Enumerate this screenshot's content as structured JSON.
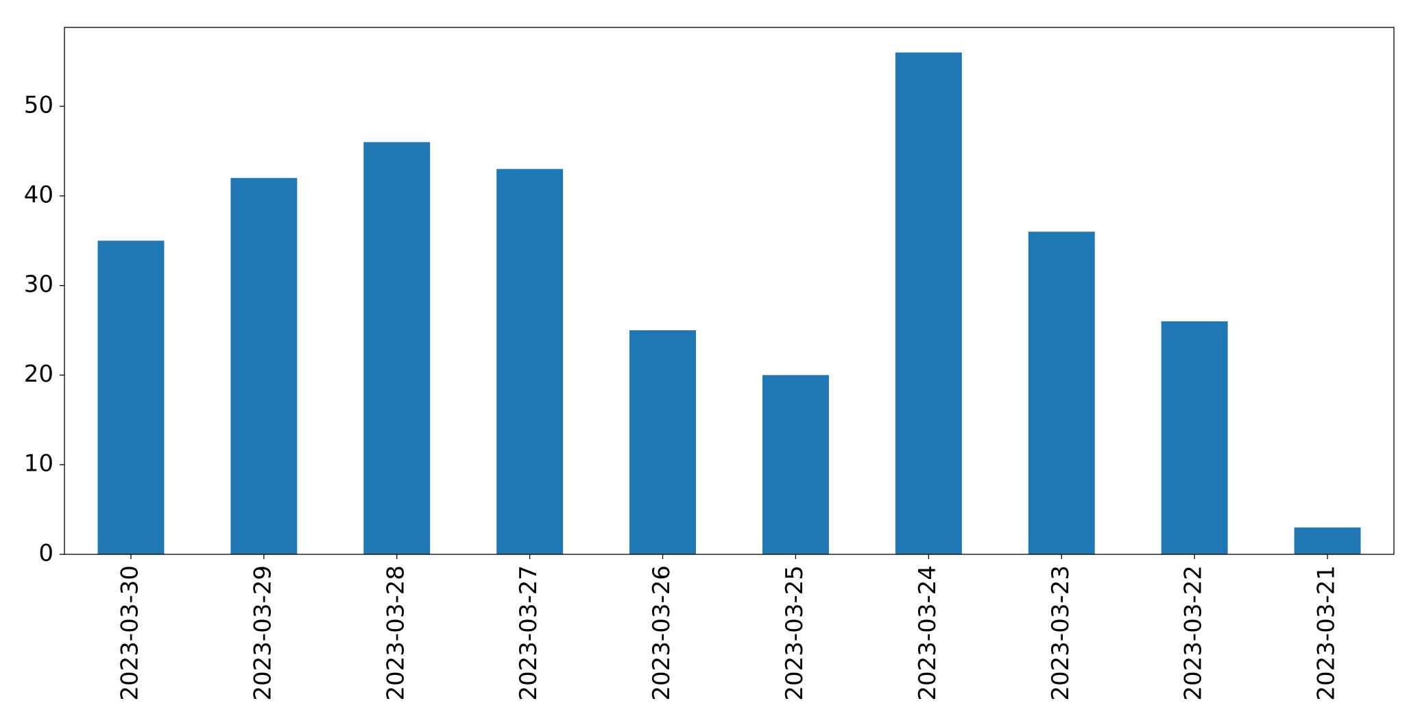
{
  "chart_data": {
    "type": "bar",
    "categories": [
      "2023-03-30",
      "2023-03-29",
      "2023-03-28",
      "2023-03-27",
      "2023-03-26",
      "2023-03-25",
      "2023-03-24",
      "2023-03-23",
      "2023-03-22",
      "2023-03-21"
    ],
    "values": [
      35,
      42,
      46,
      43,
      25,
      20,
      56,
      36,
      26,
      3
    ],
    "color": "#1f77b4",
    "ylim": [
      0,
      58.8
    ],
    "yticks": [
      0,
      10,
      20,
      30,
      40,
      50
    ],
    "grid": false
  }
}
